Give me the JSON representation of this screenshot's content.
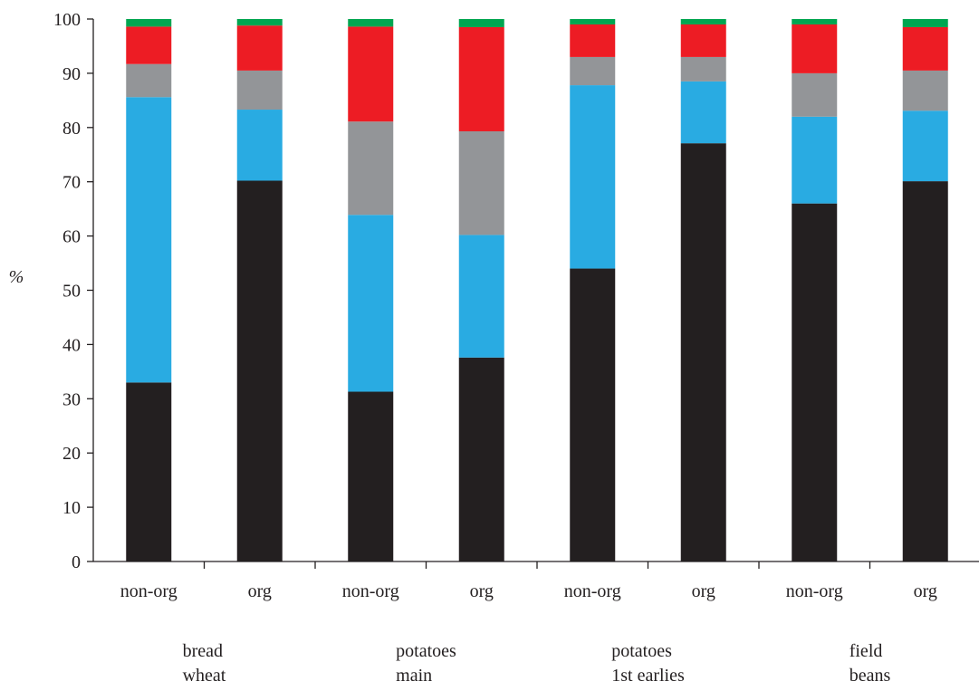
{
  "chart_data": {
    "type": "bar",
    "stacked": true,
    "ylabel": "%",
    "xlabel": "",
    "ylim": [
      0,
      100
    ],
    "yticks": [
      0,
      10,
      20,
      30,
      40,
      50,
      60,
      70,
      80,
      90,
      100
    ],
    "grid": false,
    "categories": [
      "non-org",
      "org",
      "non-org",
      "org",
      "non-org",
      "org",
      "non-org",
      "org"
    ],
    "groups": [
      {
        "line1": "bread",
        "line2": "wheat"
      },
      {
        "line1": "potatoes",
        "line2": "main"
      },
      {
        "line1": "potatoes",
        "line2": "1st earlies"
      },
      {
        "line1": "field",
        "line2": "beans"
      }
    ],
    "series": [
      {
        "color": "#231f20",
        "values": [
          33,
          70.2,
          31.3,
          37.6,
          54,
          77.1,
          66,
          70.1
        ]
      },
      {
        "color": "#29abe2",
        "values": [
          52.6,
          13.1,
          32.6,
          22.6,
          33.8,
          11.4,
          16,
          13
        ]
      },
      {
        "color": "#939598",
        "values": [
          6.1,
          7.2,
          17.2,
          19.1,
          5.2,
          4.5,
          8,
          7.4
        ]
      },
      {
        "color": "#ed1c24",
        "values": [
          6.9,
          8.3,
          17.5,
          19.2,
          6,
          6,
          9,
          8
        ]
      },
      {
        "color": "#00a651",
        "values": [
          1.4,
          1.2,
          1.4,
          1.5,
          1,
          1,
          1,
          1.5
        ]
      }
    ]
  }
}
